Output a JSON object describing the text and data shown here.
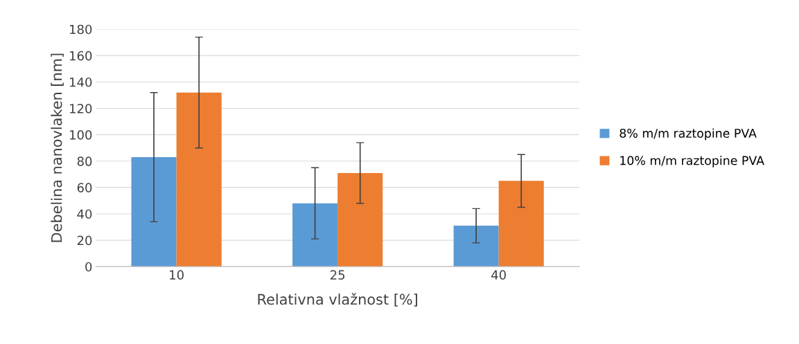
{
  "chart_data": {
    "type": "bar",
    "xlabel": "Relativna vlažnost [%]",
    "ylabel": "Debelina nanovlaken [nm]",
    "categories": [
      "10",
      "25",
      "40"
    ],
    "series": [
      {
        "name": "8% m/m raztopine PVA",
        "color": "#5b9bd5",
        "values": [
          83,
          48,
          31
        ],
        "errors": [
          [
            34,
            132
          ],
          [
            21,
            75
          ],
          [
            18,
            44
          ]
        ]
      },
      {
        "name": "10% m/m raztopine PVA",
        "color": "#ed7d31",
        "values": [
          132,
          71,
          65
        ],
        "errors": [
          [
            90,
            174
          ],
          [
            48,
            94
          ],
          [
            45,
            85
          ]
        ]
      }
    ],
    "ylim": [
      0,
      180
    ],
    "yticks": [
      0,
      20,
      40,
      60,
      80,
      100,
      120,
      140,
      160,
      180
    ],
    "grid": "y",
    "legend": "right"
  }
}
